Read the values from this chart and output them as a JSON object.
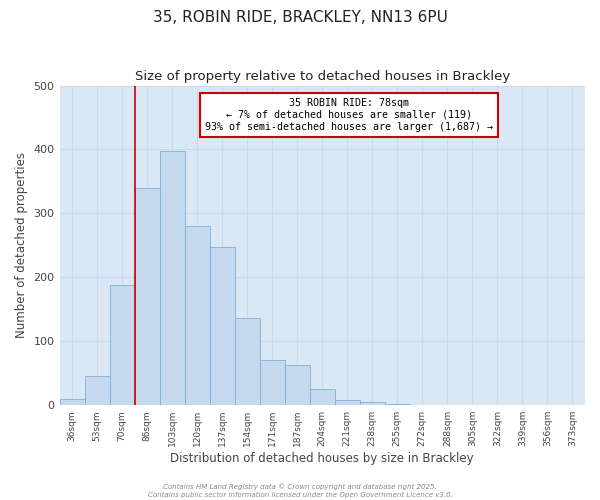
{
  "title": "35, ROBIN RIDE, BRACKLEY, NN13 6PU",
  "subtitle": "Size of property relative to detached houses in Brackley",
  "xlabel": "Distribution of detached houses by size in Brackley",
  "ylabel": "Number of detached properties",
  "bar_labels": [
    "36sqm",
    "53sqm",
    "70sqm",
    "86sqm",
    "103sqm",
    "120sqm",
    "137sqm",
    "154sqm",
    "171sqm",
    "187sqm",
    "204sqm",
    "221sqm",
    "238sqm",
    "255sqm",
    "272sqm",
    "288sqm",
    "305sqm",
    "322sqm",
    "339sqm",
    "356sqm",
    "373sqm"
  ],
  "bar_values": [
    10,
    46,
    188,
    340,
    398,
    280,
    248,
    137,
    70,
    63,
    25,
    8,
    5,
    2,
    0,
    0,
    0,
    0,
    0,
    0,
    1
  ],
  "bar_color": "#C5D9EF",
  "bar_edge_color": "#7EB0D8",
  "grid_color": "#C8DAF0",
  "background_color": "#DAE8F5",
  "vline_x_idx": 2.5,
  "vline_color": "#CC0000",
  "annotation_title": "35 ROBIN RIDE: 78sqm",
  "annotation_line1": "← 7% of detached houses are smaller (119)",
  "annotation_line2": "93% of semi-detached houses are larger (1,687) →",
  "annotation_box_color": "white",
  "annotation_box_edge": "#CC0000",
  "ylim": [
    0,
    500
  ],
  "footnote1": "Contains HM Land Registry data © Crown copyright and database right 2025.",
  "footnote2": "Contains public sector information licensed under the Open Government Licence v3.0."
}
